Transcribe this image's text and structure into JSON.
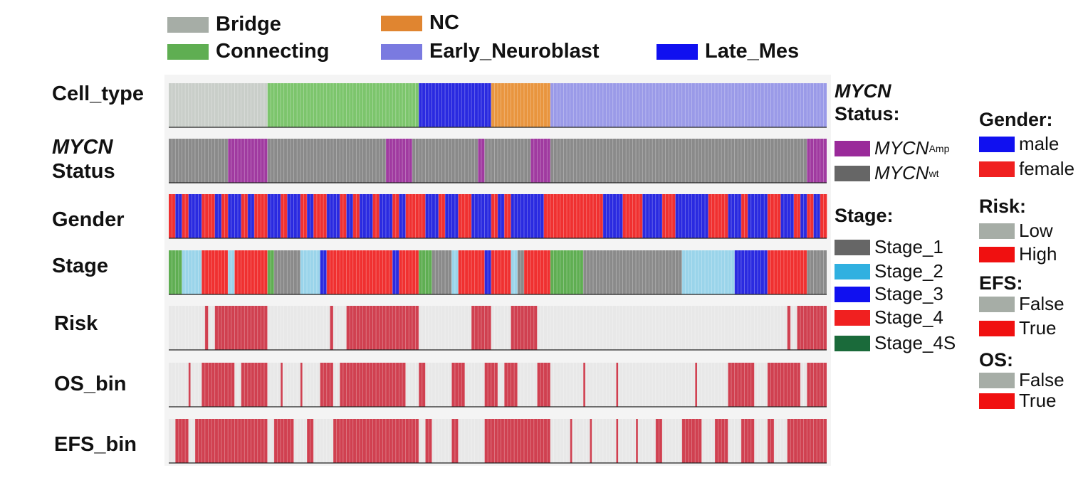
{
  "legend_top": [
    {
      "label": "Bridge",
      "color": "#a6ada6"
    },
    {
      "label": "NC",
      "color": "#e08530"
    },
    {
      "label": "Connecting",
      "color": "#5fae52"
    },
    {
      "label": "Early_Neuroblast",
      "color": "#7a7ae0"
    },
    {
      "label": "Late_Mes",
      "color": "#1010f0"
    }
  ],
  "row_labels": {
    "cell_type": "Cell_type",
    "mycn_a": "MYCN",
    "mycn_b": "Status",
    "gender": "Gender",
    "stage": "Stage",
    "risk": "Risk",
    "os": "OS_bin",
    "efs": "EFS_bin"
  },
  "side_legends": {
    "mycn": {
      "title_a": "MYCN",
      "title_b": "Status:",
      "items": [
        {
          "base": "MYCN",
          "sup": "Amp",
          "color": "#9a2a9a"
        },
        {
          "base": "MYCN",
          "sup": "wt",
          "color": "#666666"
        }
      ]
    },
    "stage": {
      "title": "Stage:",
      "items": [
        {
          "label": "Stage_1",
          "color": "#666666"
        },
        {
          "label": "Stage_2",
          "color": "#30b0e0"
        },
        {
          "label": "Stage_3",
          "color": "#1010f0"
        },
        {
          "label": "Stage_4",
          "color": "#f02020"
        },
        {
          "label": "Stage_4S",
          "color": "#1a6a3a"
        }
      ]
    },
    "gender": {
      "title": "Gender:",
      "items": [
        {
          "label": "male",
          "color": "#1010f0"
        },
        {
          "label": "female",
          "color": "#f02020"
        }
      ]
    },
    "risk": {
      "title": "Risk:",
      "items": [
        {
          "label": "Low",
          "color": "#a6ada6"
        },
        {
          "label": "High",
          "color": "#f01010"
        }
      ]
    },
    "efs": {
      "title": "EFS:",
      "items": [
        {
          "label": "False",
          "color": "#a6ada6"
        },
        {
          "label": "True",
          "color": "#f01010"
        }
      ]
    },
    "os": {
      "title": "OS:",
      "items": [
        {
          "label": "False",
          "color": "#a6ada6"
        },
        {
          "label": "True",
          "color": "#f01010"
        }
      ]
    }
  },
  "chart_data": {
    "type": "heatmap",
    "n_columns": 100,
    "rows": [
      {
        "name": "Cell_type",
        "segments": [
          {
            "from": 0,
            "to": 15,
            "category": "Bridge",
            "color": "#c9cec9"
          },
          {
            "from": 15,
            "to": 38,
            "category": "Connecting",
            "color": "#7cc56c"
          },
          {
            "from": 38,
            "to": 49,
            "category": "Late_Mes",
            "color": "#2a2ae0"
          },
          {
            "from": 49,
            "to": 58,
            "category": "NC",
            "color": "#e9953e"
          },
          {
            "from": 58,
            "to": 100,
            "category": "Early_Neuroblast",
            "color": "#9a9ae8"
          }
        ]
      },
      {
        "name": "MYCN Status",
        "segments": [
          {
            "from": 0,
            "to": 9,
            "category": "MYCN wt",
            "color": "#8a8a8a"
          },
          {
            "from": 9,
            "to": 15,
            "category": "MYCN Amp",
            "color": "#a03aa0"
          },
          {
            "from": 15,
            "to": 33,
            "category": "MYCN wt",
            "color": "#8a8a8a"
          },
          {
            "from": 33,
            "to": 37,
            "category": "MYCN Amp",
            "color": "#a03aa0"
          },
          {
            "from": 37,
            "to": 47,
            "category": "MYCN wt",
            "color": "#8a8a8a"
          },
          {
            "from": 47,
            "to": 48,
            "category": "MYCN Amp",
            "color": "#a03aa0"
          },
          {
            "from": 48,
            "to": 55,
            "category": "MYCN wt",
            "color": "#8a8a8a"
          },
          {
            "from": 55,
            "to": 58,
            "category": "MYCN Amp",
            "color": "#a03aa0"
          },
          {
            "from": 58,
            "to": 97,
            "category": "MYCN wt",
            "color": "#8a8a8a"
          },
          {
            "from": 97,
            "to": 100,
            "category": "MYCN Amp",
            "color": "#a03aa0"
          }
        ]
      },
      {
        "name": "Gender",
        "colors": {
          "m": "#2a2ae0",
          "f": "#f03030"
        },
        "pattern": "fmfmmffmfmmfmffmmfmmfmffmmfmfmmfmmfmfffmmfmmffmmmfmfmmmmmfffffffffmmmfffmmmffmmmmmfffmmfmmmffmmfmfmf"
      },
      {
        "name": "Stage",
        "segments": [
          {
            "from": 0,
            "to": 2,
            "category": "Stage_4S",
            "color": "#5fae52"
          },
          {
            "from": 2,
            "to": 5,
            "category": "Stage_2",
            "color": "#9ad4ea"
          },
          {
            "from": 5,
            "to": 9,
            "category": "Stage_4",
            "color": "#f03030"
          },
          {
            "from": 9,
            "to": 10,
            "category": "Stage_2",
            "color": "#9ad4ea"
          },
          {
            "from": 10,
            "to": 15,
            "category": "Stage_4",
            "color": "#f03030"
          },
          {
            "from": 15,
            "to": 16,
            "category": "Stage_4S",
            "color": "#5fae52"
          },
          {
            "from": 16,
            "to": 20,
            "category": "Stage_1",
            "color": "#8a8a8a"
          },
          {
            "from": 20,
            "to": 23,
            "category": "Stage_2",
            "color": "#9ad4ea"
          },
          {
            "from": 23,
            "to": 24,
            "category": "Stage_3",
            "color": "#2a2ae0"
          },
          {
            "from": 24,
            "to": 34,
            "category": "Stage_4",
            "color": "#f03030"
          },
          {
            "from": 34,
            "to": 35,
            "category": "Stage_3",
            "color": "#2a2ae0"
          },
          {
            "from": 35,
            "to": 38,
            "category": "Stage_4",
            "color": "#f03030"
          },
          {
            "from": 38,
            "to": 40,
            "category": "Stage_4S",
            "color": "#5fae52"
          },
          {
            "from": 40,
            "to": 43,
            "category": "Stage_1",
            "color": "#8a8a8a"
          },
          {
            "from": 43,
            "to": 44,
            "category": "Stage_2",
            "color": "#9ad4ea"
          },
          {
            "from": 44,
            "to": 48,
            "category": "Stage_4",
            "color": "#f03030"
          },
          {
            "from": 48,
            "to": 49,
            "category": "Stage_3",
            "color": "#2a2ae0"
          },
          {
            "from": 49,
            "to": 52,
            "category": "Stage_4",
            "color": "#f03030"
          },
          {
            "from": 52,
            "to": 53,
            "category": "Stage_2",
            "color": "#9ad4ea"
          },
          {
            "from": 53,
            "to": 54,
            "category": "Stage_1",
            "color": "#8a8a8a"
          },
          {
            "from": 54,
            "to": 58,
            "category": "Stage_4",
            "color": "#f03030"
          },
          {
            "from": 58,
            "to": 63,
            "category": "Stage_4S",
            "color": "#5fae52"
          },
          {
            "from": 63,
            "to": 78,
            "category": "Stage_1",
            "color": "#8a8a8a"
          },
          {
            "from": 78,
            "to": 86,
            "category": "Stage_2",
            "color": "#9ad4ea"
          },
          {
            "from": 86,
            "to": 91,
            "category": "Stage_3",
            "color": "#2a2ae0"
          },
          {
            "from": 91,
            "to": 97,
            "category": "Stage_4",
            "color": "#f03030"
          },
          {
            "from": 97,
            "to": 100,
            "category": "Stage_1",
            "color": "#8a8a8a"
          }
        ]
      },
      {
        "name": "Risk",
        "background": "#e8e8e8",
        "true_color": "#d04050",
        "true_ranges": [
          [
            5.5,
            6
          ],
          [
            7,
            15
          ],
          [
            24.5,
            25
          ],
          [
            27,
            38
          ],
          [
            46,
            49
          ],
          [
            52,
            56
          ],
          [
            94,
            94.5
          ],
          [
            95.5,
            100
          ]
        ]
      },
      {
        "name": "OS_bin",
        "background": "#e8e8e8",
        "true_color": "#d04050",
        "true_ranges": [
          [
            3,
            3.3
          ],
          [
            5,
            10
          ],
          [
            11,
            15
          ],
          [
            17,
            17.3
          ],
          [
            20,
            20.3
          ],
          [
            23,
            25
          ],
          [
            26,
            36
          ],
          [
            38,
            39
          ],
          [
            43,
            45
          ],
          [
            48,
            50
          ],
          [
            51,
            53
          ],
          [
            56,
            58
          ],
          [
            63,
            63.3
          ],
          [
            68,
            68.3
          ],
          [
            80,
            80.3
          ],
          [
            85,
            89
          ],
          [
            91,
            96
          ],
          [
            97,
            100
          ]
        ]
      },
      {
        "name": "EFS_bin",
        "background": "#e8e8e8",
        "true_color": "#d04050",
        "true_ranges": [
          [
            1,
            3
          ],
          [
            4,
            15
          ],
          [
            16,
            19
          ],
          [
            21,
            22
          ],
          [
            25,
            38
          ],
          [
            39,
            40
          ],
          [
            43,
            44
          ],
          [
            48,
            58
          ],
          [
            61,
            61.3
          ],
          [
            64,
            64.3
          ],
          [
            68,
            68.3
          ],
          [
            71,
            71.3
          ],
          [
            74,
            75
          ],
          [
            78,
            81
          ],
          [
            83,
            85
          ],
          [
            87,
            89
          ],
          [
            91,
            92
          ],
          [
            94,
            100
          ]
        ]
      }
    ]
  }
}
